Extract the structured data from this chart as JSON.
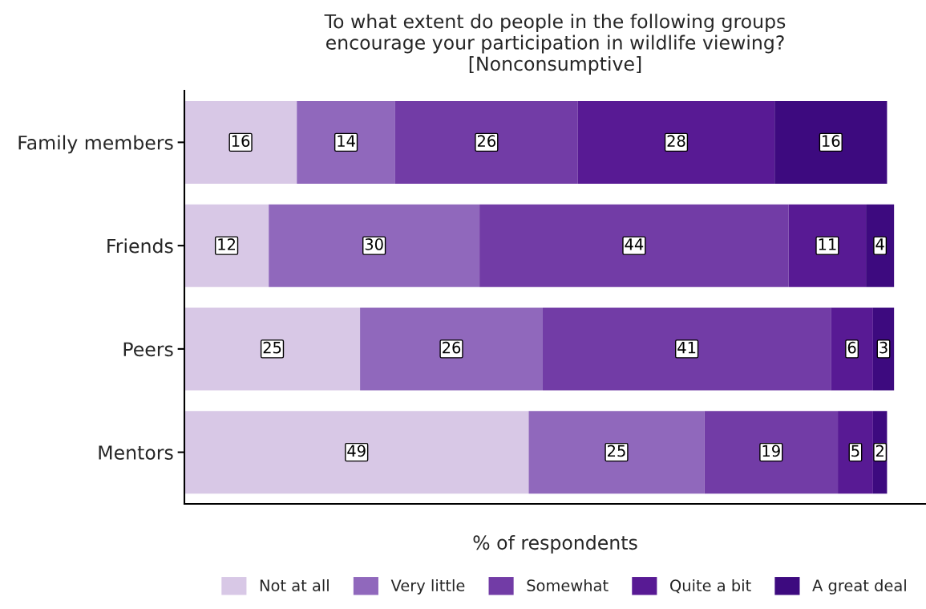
{
  "chart_data": {
    "type": "bar",
    "orientation": "horizontal",
    "stacked": true,
    "data_labels": true,
    "title": "To what extent do people in the following groups\nencourage your participation in wildlife viewing?\n[Nonconsumptive]",
    "xlabel": "% of respondents",
    "categories": [
      "Family members",
      "Friends",
      "Peers",
      "Mentors"
    ],
    "series": [
      {
        "name": "Not at all",
        "color": "#d8c8e6",
        "values": [
          16,
          12,
          25,
          49
        ]
      },
      {
        "name": "Very little",
        "color": "#9068bc",
        "values": [
          14,
          30,
          26,
          25
        ]
      },
      {
        "name": "Somewhat",
        "color": "#723ca6",
        "values": [
          26,
          44,
          41,
          19
        ]
      },
      {
        "name": "Quite a bit",
        "color": "#581a94",
        "values": [
          28,
          11,
          6,
          5
        ]
      },
      {
        "name": "A great deal",
        "color": "#3d0a7f",
        "values": [
          16,
          4,
          3,
          2
        ]
      }
    ],
    "legend": "bottom",
    "tick_labels": "y",
    "grid": false
  }
}
